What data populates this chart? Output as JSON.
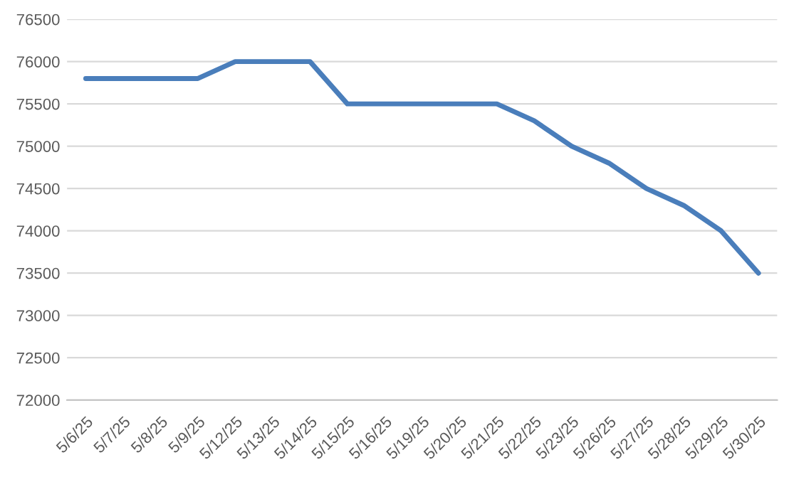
{
  "chart_data": {
    "type": "line",
    "categories": [
      "5/6/25",
      "5/7/25",
      "5/8/25",
      "5/9/25",
      "5/12/25",
      "5/13/25",
      "5/14/25",
      "5/15/25",
      "5/16/25",
      "5/19/25",
      "5/20/25",
      "5/21/25",
      "5/22/25",
      "5/23/25",
      "5/26/25",
      "5/27/25",
      "5/28/25",
      "5/29/25",
      "5/30/25"
    ],
    "series": [
      {
        "color": "#4a7ebb",
        "values": [
          75800,
          75800,
          75800,
          75800,
          76000,
          76000,
          76000,
          75500,
          75500,
          75500,
          75500,
          75500,
          75300,
          75000,
          74800,
          74500,
          74300,
          74000,
          73500
        ]
      }
    ],
    "ylim": [
      72000,
      76500
    ],
    "yticks": [
      72000,
      72500,
      73000,
      73500,
      74000,
      74500,
      75000,
      75500,
      76000,
      76500
    ],
    "grid": "y",
    "legend": false,
    "marker": "none",
    "line_style": "solid"
  }
}
